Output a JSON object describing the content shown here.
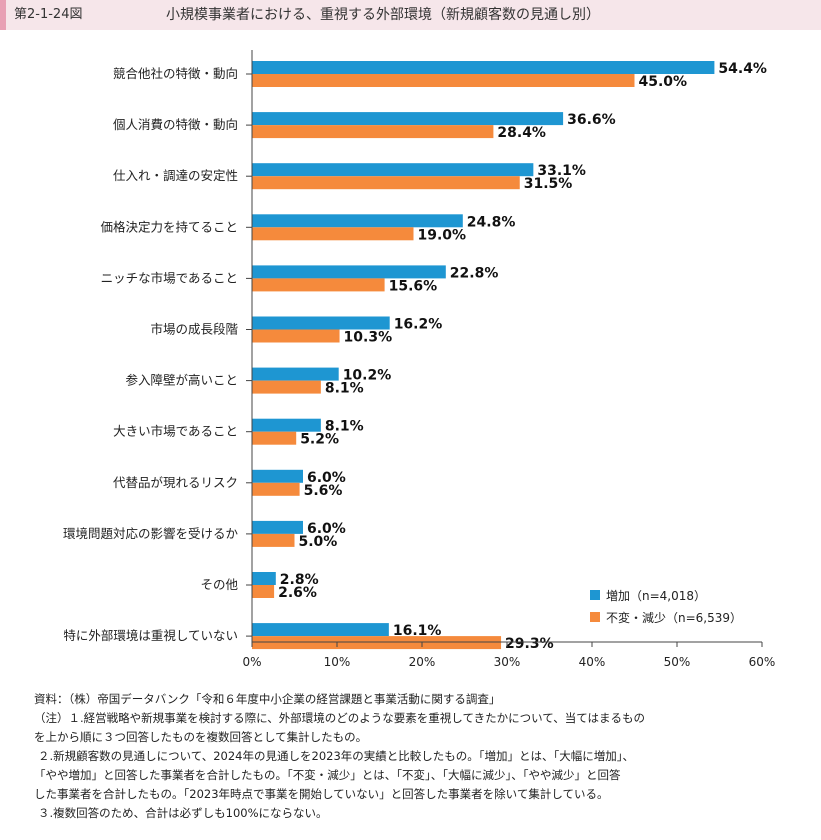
{
  "header": {
    "figure_number": "第2-1-24図",
    "title": "小規模事業者における、重視する外部環境（新規顧客数の見通し別）"
  },
  "chart_data": {
    "type": "bar",
    "orientation": "horizontal",
    "categories": [
      "競合他社の特徴・動向",
      "個人消費の特徴・動向",
      "仕入れ・調達の安定性",
      "価格決定力を持てること",
      "ニッチな市場であること",
      "市場の成長段階",
      "参入障壁が高いこと",
      "大きい市場であること",
      "代替品が現れるリスク",
      "環境問題対応の影響を受けるか",
      "その他",
      "特に外部環境は重視していない"
    ],
    "series": [
      {
        "name": "増加（n=4,018）",
        "color": "#1e96d2",
        "values": [
          54.4,
          36.6,
          33.1,
          24.8,
          22.8,
          16.2,
          10.2,
          8.1,
          6.0,
          6.0,
          2.8,
          16.1
        ],
        "labels": [
          "54.4%",
          "36.6%",
          "33.1%",
          "24.8%",
          "22.8%",
          "16.2%",
          "10.2%",
          "8.1%",
          "6.0%",
          "6.0%",
          "2.8%",
          "16.1%"
        ]
      },
      {
        "name": "不変・減少（n=6,539）",
        "color": "#f58a3c",
        "values": [
          45.0,
          28.4,
          31.5,
          19.0,
          15.6,
          10.3,
          8.1,
          5.2,
          5.6,
          5.0,
          2.6,
          29.3
        ],
        "labels": [
          "45.0%",
          "28.4%",
          "31.5%",
          "19.0%",
          "15.6%",
          "10.3%",
          "8.1%",
          "5.2%",
          "5.6%",
          "5.0%",
          "2.6%",
          "29.3%"
        ]
      }
    ],
    "xlim": [
      0,
      60
    ],
    "xticks": [
      0,
      10,
      20,
      30,
      40,
      50,
      60
    ],
    "xtick_labels": [
      "0%",
      "10%",
      "20%",
      "30%",
      "40%",
      "50%",
      "60%"
    ],
    "legend_position": "bottom-right",
    "grid": false
  },
  "notes": [
    "資料：（株）帝国データバンク「令和６年度中小企業の経営課題と事業活動に関する調査」",
    "（注）１.経営戦略や新規事業を検討する際に、外部環境のどのような要素を重視してきたかについて、当てはまるもの",
    "を上から順に３つ回答したものを複数回答として集計したもの。",
    "２.新規顧客数の見通しについて、2024年の見通しを2023年の実績と比較したもの。「増加」とは、「大幅に増加」、",
    "「やや増加」と回答した事業者を合計したもの。「不変・減少」とは、「不変」、「大幅に減少」、「やや減少」と回答",
    "した事業者を合計したもの。「2023年時点で事業を開始していない」と回答した事業者を除いて集計している。",
    "３.複数回答のため、合計は必ずしも100%にならない。"
  ]
}
